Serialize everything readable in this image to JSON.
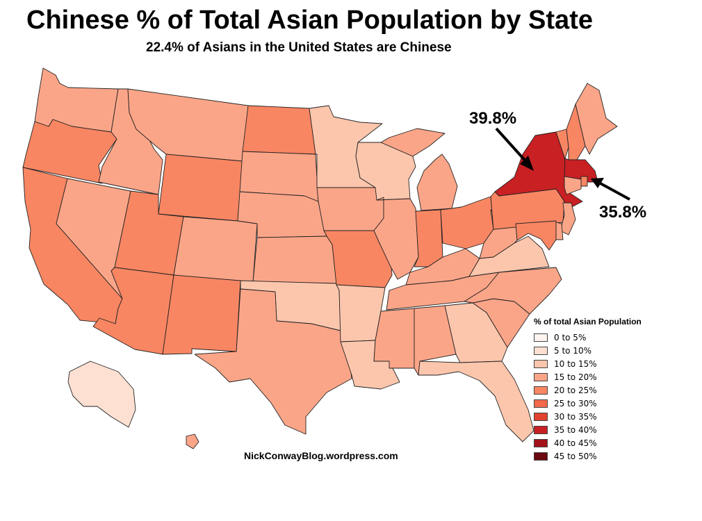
{
  "title": "Chinese % of Total Asian Population by State",
  "subtitle": "22.4% of Asians in the United States are Chinese",
  "credit": "NickConwayBlog.wordpress.com",
  "callouts": {
    "ny": {
      "label": "39.8%",
      "state": "NY"
    },
    "ma": {
      "label": "35.8%",
      "state": "MA"
    }
  },
  "legend": {
    "title": "% of total Asian Population",
    "bins": [
      {
        "label": "0 to 5%",
        "color": "#fff5f0"
      },
      {
        "label": "5 to 10%",
        "color": "#fde0d2"
      },
      {
        "label": "10 to 15%",
        "color": "#fcc6ad"
      },
      {
        "label": "15 to 20%",
        "color": "#fba588"
      },
      {
        "label": "20 to 25%",
        "color": "#f88663"
      },
      {
        "label": "25 to 30%",
        "color": "#f26a4a"
      },
      {
        "label": "30 to 35%",
        "color": "#e0432f"
      },
      {
        "label": "35 to 40%",
        "color": "#c82023"
      },
      {
        "label": "40 to 45%",
        "color": "#a3121a"
      },
      {
        "label": "45 to 50%",
        "color": "#6b0a10"
      }
    ]
  },
  "chart_data": {
    "type": "choropleth",
    "regions": [
      {
        "state": "WA",
        "bin": "15 to 20%"
      },
      {
        "state": "OR",
        "bin": "20 to 25%"
      },
      {
        "state": "CA",
        "bin": "20 to 25%"
      },
      {
        "state": "NV",
        "bin": "15 to 20%"
      },
      {
        "state": "ID",
        "bin": "15 to 20%"
      },
      {
        "state": "MT",
        "bin": "15 to 20%"
      },
      {
        "state": "WY",
        "bin": "20 to 25%"
      },
      {
        "state": "UT",
        "bin": "20 to 25%"
      },
      {
        "state": "AZ",
        "bin": "20 to 25%"
      },
      {
        "state": "CO",
        "bin": "15 to 20%"
      },
      {
        "state": "NM",
        "bin": "20 to 25%"
      },
      {
        "state": "ND",
        "bin": "20 to 25%"
      },
      {
        "state": "SD",
        "bin": "15 to 20%"
      },
      {
        "state": "NE",
        "bin": "15 to 20%"
      },
      {
        "state": "KS",
        "bin": "15 to 20%"
      },
      {
        "state": "OK",
        "bin": "10 to 15%"
      },
      {
        "state": "TX",
        "bin": "15 to 20%"
      },
      {
        "state": "MN",
        "bin": "10 to 15%"
      },
      {
        "state": "IA",
        "bin": "15 to 20%"
      },
      {
        "state": "MO",
        "bin": "20 to 25%"
      },
      {
        "state": "AR",
        "bin": "10 to 15%"
      },
      {
        "state": "LA",
        "bin": "10 to 15%"
      },
      {
        "state": "WI",
        "bin": "10 to 15%"
      },
      {
        "state": "IL",
        "bin": "15 to 20%"
      },
      {
        "state": "MI",
        "bin": "15 to 20%"
      },
      {
        "state": "IN",
        "bin": "20 to 25%"
      },
      {
        "state": "OH",
        "bin": "20 to 25%"
      },
      {
        "state": "KY",
        "bin": "15 to 20%"
      },
      {
        "state": "TN",
        "bin": "15 to 20%"
      },
      {
        "state": "MS",
        "bin": "15 to 20%"
      },
      {
        "state": "AL",
        "bin": "15 to 20%"
      },
      {
        "state": "GA",
        "bin": "10 to 15%"
      },
      {
        "state": "FL",
        "bin": "10 to 15%"
      },
      {
        "state": "SC",
        "bin": "15 to 20%"
      },
      {
        "state": "NC",
        "bin": "15 to 20%"
      },
      {
        "state": "VA",
        "bin": "10 to 15%"
      },
      {
        "state": "WV",
        "bin": "15 to 20%"
      },
      {
        "state": "PA",
        "bin": "20 to 25%"
      },
      {
        "state": "NY",
        "bin": "35 to 40%",
        "value": 39.8
      },
      {
        "state": "VT",
        "bin": "20 to 25%"
      },
      {
        "state": "NH",
        "bin": "20 to 25%"
      },
      {
        "state": "ME",
        "bin": "15 to 20%"
      },
      {
        "state": "MA",
        "bin": "35 to 40%",
        "value": 35.8
      },
      {
        "state": "RI",
        "bin": "20 to 25%"
      },
      {
        "state": "CT",
        "bin": "15 to 20%"
      },
      {
        "state": "NJ",
        "bin": "15 to 20%"
      },
      {
        "state": "DE",
        "bin": "15 to 20%"
      },
      {
        "state": "MD",
        "bin": "20 to 25%"
      },
      {
        "state": "AK",
        "bin": "5 to 10%"
      },
      {
        "state": "HI",
        "bin": "15 to 20%"
      }
    ]
  }
}
